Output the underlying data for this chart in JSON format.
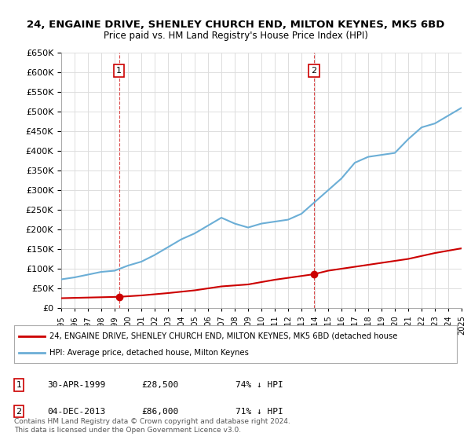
{
  "title": "24, ENGAINE DRIVE, SHENLEY CHURCH END, MILTON KEYNES, MK5 6BD",
  "subtitle": "Price paid vs. HM Land Registry's House Price Index (HPI)",
  "hpi_years": [
    1995,
    1996,
    1997,
    1998,
    1999,
    2000,
    2001,
    2002,
    2003,
    2004,
    2005,
    2006,
    2007,
    2008,
    2009,
    2010,
    2011,
    2012,
    2013,
    2014,
    2015,
    2016,
    2017,
    2018,
    2019,
    2020,
    2021,
    2022,
    2023,
    2024,
    2025
  ],
  "hpi_values": [
    73000,
    78000,
    85000,
    92000,
    95000,
    108000,
    118000,
    135000,
    155000,
    175000,
    190000,
    210000,
    230000,
    215000,
    205000,
    215000,
    220000,
    225000,
    240000,
    270000,
    300000,
    330000,
    370000,
    385000,
    390000,
    395000,
    430000,
    460000,
    470000,
    490000,
    510000
  ],
  "sale_years": [
    1999.33,
    2013.92
  ],
  "sale_values": [
    28500,
    86000
  ],
  "sale_labels": [
    "1",
    "2"
  ],
  "marker1_year": 1999.33,
  "marker1_value": 28500,
  "marker2_year": 2013.92,
  "marker2_value": 86000,
  "vline1_year": 1999.33,
  "vline2_year": 2013.92,
  "hpi_color": "#6baed6",
  "sale_color": "#cc0000",
  "vline_color": "#cc0000",
  "ylim_min": 0,
  "ylim_max": 650000,
  "ytick_step": 50000,
  "xlim_min": 1995,
  "xlim_max": 2025,
  "xtick_labels": [
    "1995",
    "1996",
    "1997",
    "1998",
    "1999",
    "2000",
    "2001",
    "2002",
    "2003",
    "2004",
    "2005",
    "2006",
    "2007",
    "2008",
    "2009",
    "2010",
    "2011",
    "2012",
    "2013",
    "2014",
    "2015",
    "2016",
    "2017",
    "2018",
    "2019",
    "2020",
    "2021",
    "2022",
    "2023",
    "2024",
    "2025"
  ],
  "legend_line1": "24, ENGAINE DRIVE, SHENLEY CHURCH END, MILTON KEYNES, MK5 6BD (detached house",
  "legend_line2": "HPI: Average price, detached house, Milton Keynes",
  "table_row1_num": "1",
  "table_row1_date": "30-APR-1999",
  "table_row1_price": "£28,500",
  "table_row1_hpi": "74% ↓ HPI",
  "table_row2_num": "2",
  "table_row2_date": "04-DEC-2013",
  "table_row2_price": "£86,000",
  "table_row2_hpi": "71% ↓ HPI",
  "footer": "Contains HM Land Registry data © Crown copyright and database right 2024.\nThis data is licensed under the Open Government Licence v3.0.",
  "background_color": "#ffffff",
  "grid_color": "#dddddd"
}
